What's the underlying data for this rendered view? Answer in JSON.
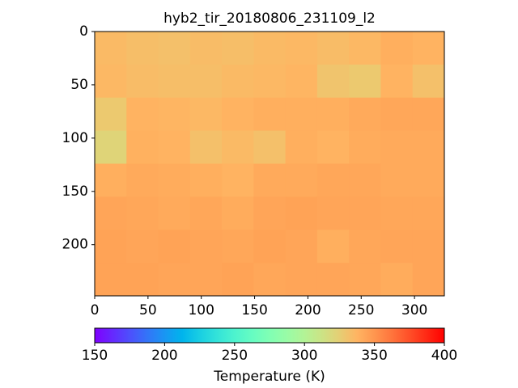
{
  "chart_data": {
    "type": "heatmap",
    "title": "hyb2_tir_20180806_231109_l2",
    "colormap": "rainbow",
    "values": [
      [
        335,
        333,
        332,
        334,
        333,
        335,
        336,
        334,
        336,
        340,
        338
      ],
      [
        336,
        334,
        333,
        333,
        335,
        336,
        337,
        330,
        328,
        338,
        332
      ],
      [
        328,
        338,
        337,
        336,
        338,
        340,
        340,
        340,
        342,
        343,
        343
      ],
      [
        322,
        339,
        338,
        332,
        335,
        332,
        340,
        338,
        341,
        342,
        342
      ],
      [
        340,
        342,
        341,
        340,
        338,
        342,
        342,
        343,
        343,
        342,
        342
      ],
      [
        344,
        343,
        342,
        343,
        341,
        344,
        345,
        344,
        344,
        343,
        343
      ],
      [
        345,
        344,
        345,
        344,
        343,
        345,
        344,
        340,
        343,
        344,
        344
      ],
      [
        345,
        345,
        344,
        344,
        345,
        343,
        344,
        344,
        343,
        341,
        344
      ]
    ],
    "xlim": [
      0,
      328
    ],
    "xticks": [
      0,
      50,
      100,
      150,
      200,
      250,
      300
    ],
    "ylim": [
      248,
      0
    ],
    "yticks": [
      0,
      50,
      100,
      150,
      200
    ],
    "clim": [
      150,
      400
    ],
    "cticks": [
      150,
      200,
      250,
      300,
      350,
      400
    ],
    "colorbar_label": "Temperature (K)"
  }
}
